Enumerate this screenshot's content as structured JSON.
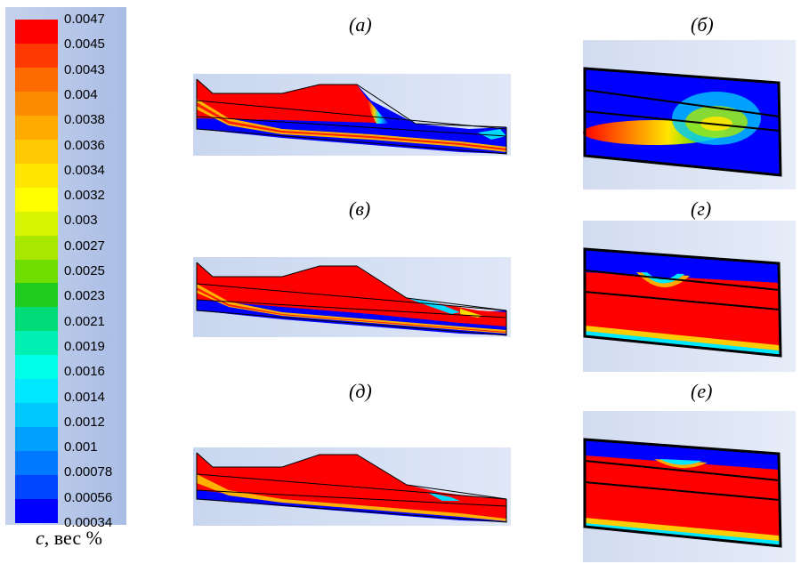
{
  "legend": {
    "ticks": [
      "0.0047",
      "0.0045",
      "0.0043",
      "0.004",
      "0.0038",
      "0.0036",
      "0.0034",
      "0.0032",
      "0.003",
      "0.0027",
      "0.0025",
      "0.0023",
      "0.0021",
      "0.0019",
      "0.0016",
      "0.0014",
      "0.0012",
      "0.001",
      "0.00078",
      "0.00056",
      "0.00034"
    ],
    "colors": [
      "#ff0000",
      "#ff3a00",
      "#ff6a00",
      "#ff8c00",
      "#ffaa00",
      "#ffc800",
      "#ffe600",
      "#ffff00",
      "#d8f400",
      "#a8e800",
      "#70dc00",
      "#20cc20",
      "#00dc78",
      "#00f0b4",
      "#00ffe6",
      "#00e8ff",
      "#00c8ff",
      "#00a0ff",
      "#0078ff",
      "#0046ff",
      "#0000ff"
    ],
    "caption_var": "c",
    "caption_units": ", вес %"
  },
  "panels": {
    "a": "(а)",
    "b": "(б)",
    "v": "(в)",
    "g": "(г)",
    "d": "(д)",
    "e": "(е)"
  }
}
